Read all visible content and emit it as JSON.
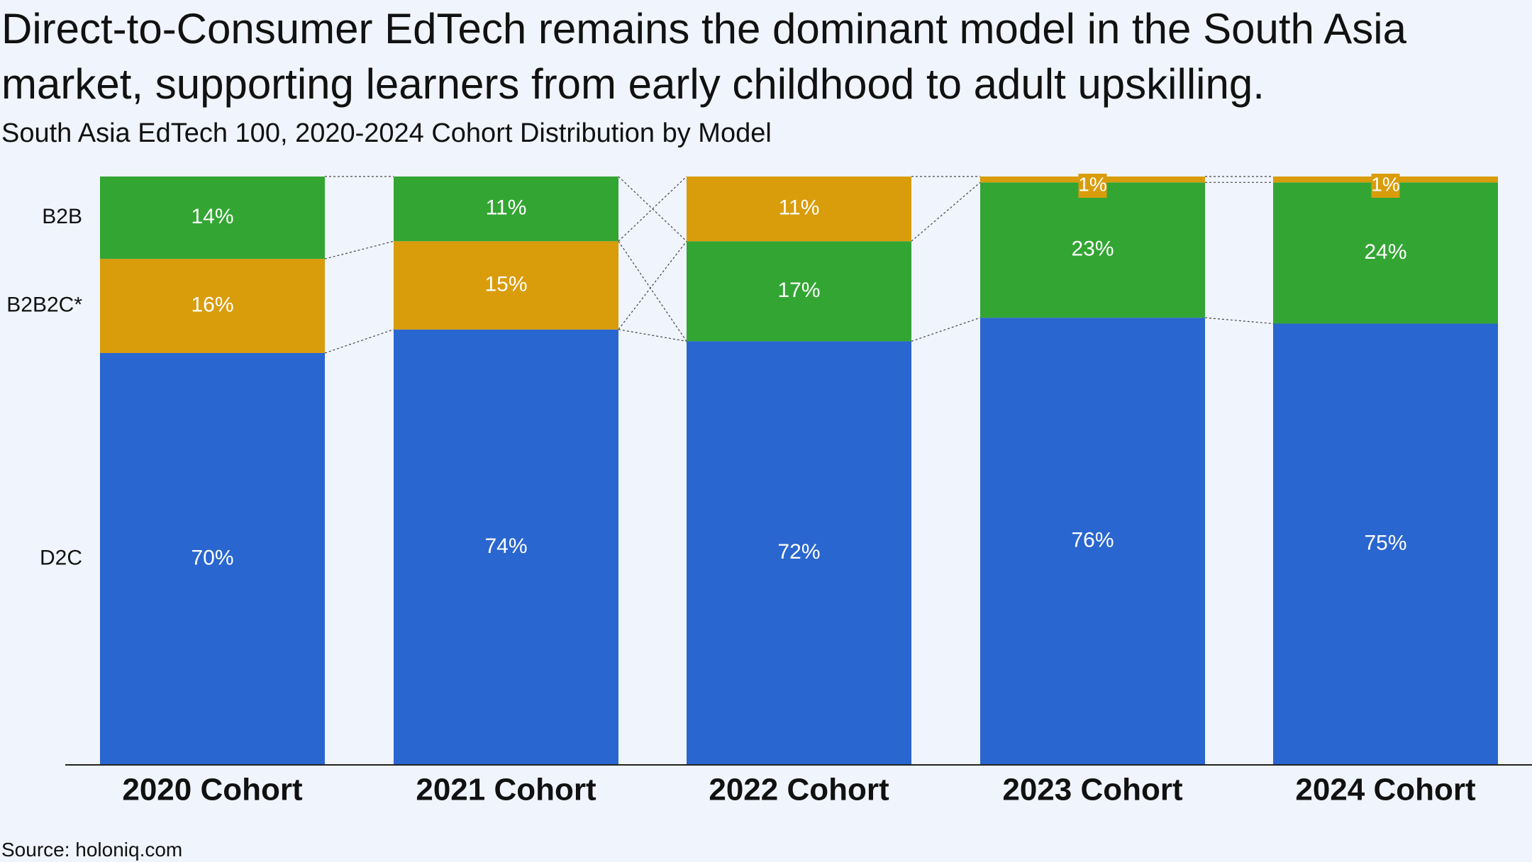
{
  "title": "Direct-to-Consumer EdTech remains the dominant model in the South Asia market, supporting learners from early childhood to adult upskilling.",
  "subtitle": "South Asia EdTech 100, 2020-2024 Cohort Distribution by Model",
  "source": "Source: holoniq.com",
  "colors": {
    "D2C": "#2a66cf",
    "B2B2C": "#d99c0b",
    "B2B": "#33a533",
    "background": "#f0f4fc"
  },
  "chart_data": {
    "type": "bar",
    "stacked": true,
    "normalized": true,
    "categories": [
      "2020 Cohort",
      "2021 Cohort",
      "2022 Cohort",
      "2023 Cohort",
      "2024 Cohort"
    ],
    "series": [
      {
        "name": "D2C",
        "values": [
          70,
          74,
          72,
          76,
          75
        ],
        "labels": [
          "70%",
          "74%",
          "72%",
          "76%",
          "75%"
        ]
      },
      {
        "name": "B2B2C*",
        "values": [
          16,
          15,
          11,
          1,
          1
        ],
        "labels": [
          "16%",
          "15%",
          "11%",
          "1%",
          "1%"
        ]
      },
      {
        "name": "B2B",
        "values": [
          14,
          11,
          17,
          23,
          24
        ],
        "labels": [
          "14%",
          "11%",
          "17%",
          "23%",
          "24%"
        ]
      }
    ],
    "stack_order": [
      [
        "D2C",
        "B2B2C*",
        "B2B"
      ],
      [
        "D2C",
        "B2B2C*",
        "B2B"
      ],
      [
        "D2C",
        "B2B",
        "B2B2C*"
      ],
      [
        "D2C",
        "B2B",
        "B2B2C*"
      ],
      [
        "D2C",
        "B2B",
        "B2B2C*"
      ]
    ],
    "row_labels": [
      "B2B",
      "B2B2C*",
      "D2C"
    ],
    "ylim": [
      0,
      100
    ],
    "grid": false,
    "connector_lines": true
  }
}
